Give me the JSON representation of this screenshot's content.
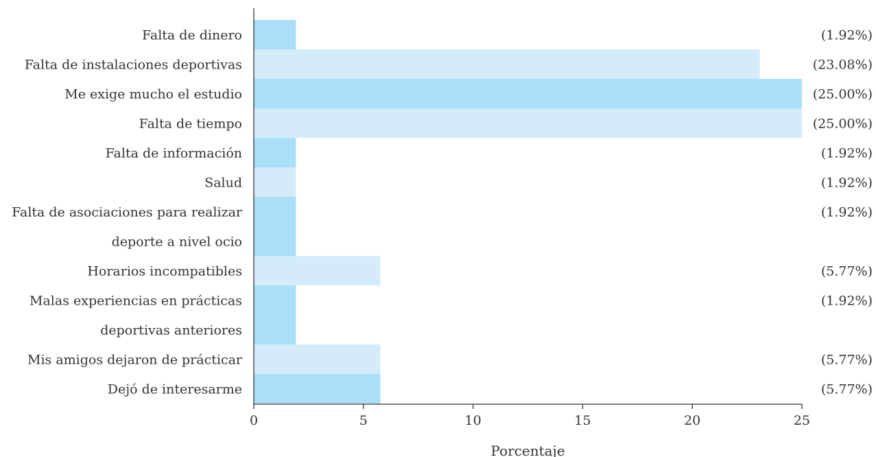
{
  "chart_data": {
    "type": "bar",
    "orientation": "horizontal",
    "categories": [
      [
        "Falta de dinero"
      ],
      [
        "Falta de instalaciones deportivas"
      ],
      [
        "Me exige mucho el estudio"
      ],
      [
        "Falta de tiempo"
      ],
      [
        "Falta de información"
      ],
      [
        "Salud"
      ],
      [
        "Falta de asociaciones para realizar",
        "deporte a nivel ocio"
      ],
      [
        "Horarios incompatibles"
      ],
      [
        "Malas experiencias en prácticas",
        "deportivas anteriores"
      ],
      [
        "Mis amigos dejaron de prácticar"
      ],
      [
        "Dejó de interesarme"
      ]
    ],
    "values": [
      1.92,
      23.08,
      25.0,
      25.0,
      1.92,
      1.92,
      1.92,
      5.77,
      1.92,
      5.77,
      5.77
    ],
    "value_labels": [
      "(1.92%)",
      "(23.08%)",
      "(25.00%)",
      "(25.00%)",
      "(1.92%)",
      "(1.92%)",
      "(1.92%)",
      "(5.77%)",
      "(1.92%)",
      "(5.77%)",
      "(5.77%)"
    ],
    "xlabel": "Porcentaje",
    "ylabel": "",
    "title": "",
    "xlim": [
      0,
      25
    ],
    "xticks": [
      0,
      5,
      10,
      15,
      20,
      25
    ],
    "grid": false,
    "colors": [
      "#aadff8",
      "#d4ecf9"
    ]
  }
}
